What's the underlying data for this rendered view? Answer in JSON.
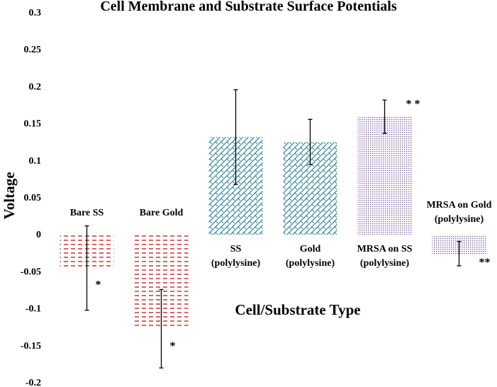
{
  "chart_data": {
    "type": "bar",
    "title": "Cell Membrane and Substrate Surface Potentials",
    "xlabel": "Cell/Substrate Type",
    "ylabel": "Voltage",
    "ylim": [
      -0.2,
      0.3
    ],
    "yticks": [
      "0.3",
      "0.25",
      "0.2",
      "0.15",
      "0.1",
      "0.05",
      "0",
      "-0.05",
      "-0.1",
      "-0.15",
      "-0.2"
    ],
    "ytick_values": [
      0.3,
      0.25,
      0.2,
      0.15,
      0.1,
      0.05,
      0,
      -0.05,
      -0.1,
      -0.15,
      -0.2
    ],
    "grid": false,
    "categories": [
      [
        "Bare SS"
      ],
      [
        "Bare Gold"
      ],
      [
        "SS",
        "(polylysine)"
      ],
      [
        "Gold",
        "(polylysine)"
      ],
      [
        "MRSA on SS",
        "(polylysine)"
      ],
      [
        "MRSA on Gold",
        "(polylysine)"
      ]
    ],
    "values": [
      -0.045,
      -0.125,
      0.132,
      0.125,
      0.16,
      -0.027
    ],
    "error_low": [
      -0.102,
      -0.18,
      0.068,
      0.095,
      0.137,
      -0.042
    ],
    "error_high": [
      0.012,
      -0.074,
      0.196,
      0.156,
      0.182,
      -0.009
    ],
    "significance": [
      "*",
      "*",
      "",
      "",
      "* *",
      "**"
    ],
    "colors": [
      "#c00000",
      "#c00000",
      "#31849b",
      "#31849b",
      "#8064a2",
      "#8064a2"
    ]
  }
}
